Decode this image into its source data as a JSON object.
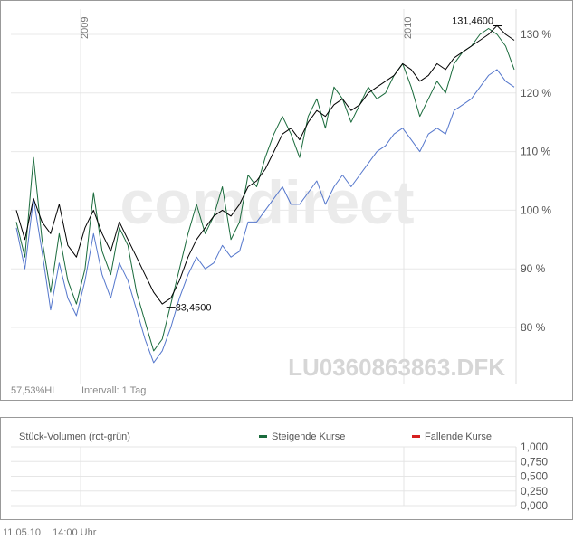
{
  "chart_data": {
    "type": "line",
    "x_labels": [
      "2009",
      "2010"
    ],
    "ylim": [
      70,
      135
    ],
    "yticks": [
      80,
      90,
      100,
      110,
      120,
      130
    ],
    "ytick_labels": [
      "80 %",
      "90 %",
      "100 %",
      "110 %",
      "120 %",
      "130 %"
    ],
    "grid": true,
    "series": [
      {
        "color": "#000000",
        "values": [
          100,
          95,
          102,
          98,
          96,
          101,
          94,
          92,
          97,
          100,
          96,
          93,
          98,
          95,
          92,
          89,
          86,
          84,
          85,
          88,
          92,
          95,
          97,
          99,
          100,
          99,
          101,
          104,
          105,
          107,
          110,
          113,
          114,
          112,
          115,
          117,
          116,
          118,
          119,
          117,
          118,
          120,
          121,
          122,
          123,
          125,
          124,
          122,
          123,
          125,
          124,
          126,
          127,
          128,
          129,
          130,
          131.5,
          130,
          129
        ]
      },
      {
        "color": "#1a6b3c",
        "values": [
          98,
          92,
          109,
          95,
          86,
          96,
          88,
          84,
          90,
          103,
          93,
          89,
          97,
          94,
          86,
          81,
          76,
          78,
          84,
          90,
          96,
          101,
          96,
          99,
          104,
          95,
          98,
          106,
          104,
          109,
          113,
          116,
          113,
          109,
          116,
          119,
          114,
          121,
          119,
          115,
          118,
          121,
          119,
          120,
          123,
          125,
          121,
          116,
          119,
          122,
          120,
          125,
          127,
          128,
          130,
          131,
          130,
          128,
          124
        ]
      },
      {
        "color": "#5577cc",
        "values": [
          97,
          90,
          102,
          93,
          83,
          91,
          85,
          82,
          88,
          96,
          89,
          85,
          91,
          88,
          83,
          78,
          74,
          76,
          80,
          85,
          89,
          92,
          90,
          91,
          94,
          92,
          93,
          98,
          98,
          100,
          102,
          104,
          101,
          101,
          103,
          105,
          101,
          104,
          106,
          104,
          106,
          108,
          110,
          111,
          113,
          114,
          112,
          110,
          113,
          114,
          113,
          117,
          118,
          119,
          121,
          123,
          124,
          122,
          121
        ]
      }
    ],
    "annotations": [
      {
        "text": "83,4500",
        "index": 18,
        "value": 83.45,
        "position": "right"
      },
      {
        "text": "131,4600",
        "index": 56,
        "value": 131.46,
        "position": "left"
      }
    ],
    "watermark": "comdirect",
    "isin_label": "LU0360863863.DFK",
    "footer_left": "57,53%HL",
    "interval": "Intervall: 1 Tag"
  },
  "volume": {
    "title": "Stück-Volumen (rot-grün)",
    "legend": [
      {
        "label": "Steigende Kurse",
        "color": "#1a6b3c"
      },
      {
        "label": "Fallende Kurse",
        "color": "#d62020"
      }
    ],
    "yticks": [
      0,
      0.25,
      0.5,
      0.75,
      1
    ],
    "ytick_labels": [
      "0,000",
      "0,250",
      "0,500",
      "0,750",
      "1,000"
    ]
  },
  "footer": {
    "date": "11.05.10",
    "time": "14:00 Uhr"
  }
}
